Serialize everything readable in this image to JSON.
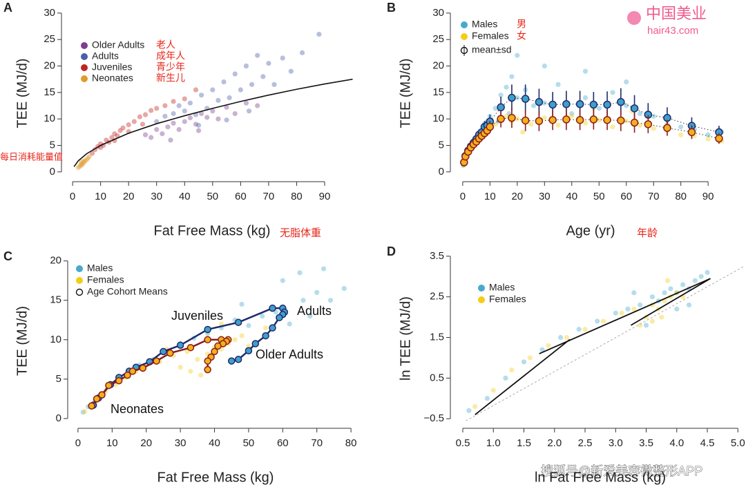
{
  "chart_data": [
    {
      "type": "scatter",
      "panel": "A",
      "xlabel": "Fat Free Mass (kg)",
      "ylabel": "TEE (MJ/d)",
      "xlim": [
        -2,
        101.6
      ],
      "ylim": [
        -1.2,
        30.9
      ],
      "xticks": [
        0,
        10,
        20,
        30,
        40,
        50,
        60,
        70,
        80,
        90
      ],
      "yticks": [
        0,
        5,
        10,
        15,
        20,
        25,
        30
      ],
      "series": [
        {
          "name": "Older Adults",
          "color": "#7b3f8f",
          "x": [
            26,
            28,
            30,
            32,
            34,
            36,
            38,
            40,
            42,
            44,
            46,
            48,
            50,
            52,
            55,
            58,
            62,
            66,
            35,
            45
          ],
          "values": [
            7.0,
            6.5,
            8.0,
            7.2,
            8.5,
            9.2,
            8.0,
            9.5,
            10.2,
            9.0,
            11.0,
            10.3,
            11.5,
            10.0,
            12.2,
            11.0,
            13.0,
            12.5,
            6.0,
            7.8
          ]
        },
        {
          "name": "Adults",
          "color": "#4a5fa8",
          "x": [
            30,
            33,
            36,
            38,
            40,
            42,
            44,
            46,
            48,
            50,
            52,
            54,
            56,
            58,
            60,
            62,
            64,
            66,
            68,
            70,
            72,
            75,
            78,
            82,
            88,
            45,
            55,
            63
          ],
          "values": [
            9.5,
            10.5,
            11.0,
            12.5,
            11.5,
            13.0,
            10.8,
            14.5,
            12.0,
            15.5,
            13.5,
            17.0,
            14.0,
            18.5,
            15.5,
            20.0,
            16.5,
            22.0,
            18.0,
            20.5,
            16.5,
            21.5,
            19.0,
            22.5,
            26.0,
            8.8,
            9.8,
            11.5
          ]
        },
        {
          "name": "Juveniles",
          "color": "#c0241e",
          "x": [
            7,
            8,
            9,
            10,
            11,
            12,
            13,
            14,
            15,
            16,
            17,
            18,
            20,
            22,
            24,
            26,
            28,
            30,
            33,
            36,
            40,
            44,
            10,
            15,
            20,
            25
          ],
          "values": [
            3.5,
            4.2,
            4.8,
            5.3,
            5.0,
            6.0,
            5.6,
            6.5,
            7.2,
            6.8,
            7.8,
            8.3,
            8.9,
            9.5,
            10.4,
            10.8,
            11.6,
            12.0,
            12.5,
            13.3,
            13.8,
            15.5,
            4.6,
            5.9,
            7.6,
            9.0
          ]
        },
        {
          "name": "Neonates",
          "color": "#e09b2d",
          "x": [
            2,
            2.5,
            3,
            3,
            3.5,
            4,
            4,
            4.5,
            5,
            5.5,
            6,
            3.2
          ],
          "values": [
            0.8,
            1.0,
            1.2,
            1.5,
            1.4,
            1.7,
            2.0,
            2.1,
            2.3,
            2.6,
            2.9,
            1.9
          ]
        }
      ],
      "fit": {
        "color": "#111111",
        "x": [
          0.5,
          2,
          5,
          10,
          20,
          30,
          40,
          50,
          60,
          70,
          80,
          90,
          100
        ],
        "values": [
          0.98,
          2.08,
          3.42,
          5.0,
          7.3,
          9.1,
          10.6,
          12.0,
          13.3,
          14.5,
          15.6,
          16.6,
          17.5
        ]
      },
      "legend_annotations": [
        "老人",
        "成年人",
        "青少年",
        "新生儿"
      ],
      "annotations": [
        "每日消耗能量值",
        "无脂体重"
      ],
      "annotation_color": "#e8261a"
    },
    {
      "type": "scatter",
      "panel": "B",
      "xlabel": "Age (yr)",
      "ylabel": "TEE (MJ/d)",
      "xlim": [
        -2.5,
        96.3
      ],
      "ylim": [
        -1.2,
        30.9
      ],
      "xticks": [
        0,
        10,
        20,
        30,
        40,
        50,
        60,
        70,
        80,
        90
      ],
      "yticks": [
        0,
        5,
        10,
        15,
        20,
        25,
        30
      ],
      "series": [
        {
          "name": "Males",
          "color": "#47a9cc",
          "x": [
            0.2,
            0.5,
            1,
            1.5,
            2,
            3,
            4,
            5,
            6,
            7,
            8,
            9,
            10,
            12,
            14,
            16,
            18,
            20,
            23,
            26,
            30,
            35,
            40,
            45,
            50,
            55,
            60,
            65,
            70,
            75,
            80,
            85,
            90,
            95,
            20,
            30,
            45,
            60,
            13,
            17
          ],
          "values": [
            1.2,
            2.0,
            3.0,
            3.5,
            4.2,
            5.0,
            5.8,
            6.2,
            7.5,
            7.8,
            9.0,
            9.5,
            10.5,
            12.0,
            14.5,
            16.0,
            18.0,
            14.0,
            15.5,
            12.5,
            13.0,
            16.5,
            11.0,
            14.0,
            12.0,
            15.0,
            12.5,
            11.0,
            10.5,
            9.0,
            8.5,
            8.0,
            7.0,
            7.5,
            22,
            20,
            19,
            17,
            9.5,
            11
          ],
          "mean_fill": "#3f9fc8",
          "mean_stroke": "#1c2a6e",
          "mean_x": [
            0.5,
            1,
            2,
            3,
            4,
            5,
            6,
            7,
            8,
            9,
            10,
            14,
            18,
            23,
            28,
            33,
            38,
            43,
            48,
            53,
            58,
            63,
            68,
            75,
            84,
            94
          ],
          "mean_values": [
            1.8,
            3.0,
            4.0,
            4.8,
            5.5,
            6.2,
            7.0,
            7.5,
            8.5,
            8.8,
            9.5,
            12.2,
            14.0,
            13.8,
            13.2,
            12.7,
            12.8,
            12.8,
            12.7,
            12.7,
            13.2,
            12.0,
            10.8,
            10.2,
            8.7,
            7.5
          ],
          "mean_sd": [
            0.3,
            0.5,
            0.6,
            0.7,
            0.8,
            0.9,
            1.0,
            1.0,
            1.1,
            1.2,
            1.3,
            2.0,
            2.5,
            2.7,
            2.5,
            2.4,
            2.5,
            2.5,
            2.4,
            2.5,
            2.6,
            2.5,
            2.2,
            2.0,
            1.6,
            1.2
          ]
        },
        {
          "name": "Females",
          "color": "#f5cc16",
          "x": [
            0.3,
            0.6,
            1,
            2,
            3,
            4,
            5,
            6,
            7,
            8,
            9,
            10,
            12,
            14,
            16,
            18,
            20,
            25,
            30,
            35,
            40,
            45,
            50,
            55,
            60,
            65,
            70,
            75,
            80,
            85,
            90,
            95,
            22,
            33,
            48,
            62
          ],
          "values": [
            1.3,
            1.8,
            2.8,
            3.6,
            4.5,
            5.0,
            5.5,
            6.0,
            6.6,
            7.2,
            7.5,
            8.2,
            9.0,
            9.8,
            10.5,
            9.5,
            10.0,
            9.0,
            10.2,
            8.8,
            10.5,
            9.2,
            9.8,
            8.5,
            9.6,
            8.8,
            8.2,
            7.8,
            7.0,
            6.8,
            6.2,
            5.8,
            7.5,
            12.5,
            12.0,
            11.5
          ],
          "mean_fill": "#f2b01a",
          "mean_stroke": "#8b1c1c",
          "mean_x": [
            0.5,
            1,
            2,
            3,
            4,
            5,
            6,
            7,
            8,
            9,
            10,
            14,
            18,
            23,
            28,
            33,
            38,
            43,
            48,
            53,
            58,
            63,
            68,
            75,
            84,
            94
          ],
          "mean_values": [
            1.8,
            2.9,
            3.8,
            4.6,
            5.2,
            5.7,
            6.3,
            6.8,
            7.3,
            7.8,
            8.5,
            10.0,
            10.2,
            9.7,
            9.6,
            9.8,
            9.9,
            9.8,
            9.9,
            9.8,
            9.7,
            9.3,
            9.0,
            8.3,
            7.5,
            6.3
          ],
          "mean_sd": [
            0.3,
            0.4,
            0.5,
            0.6,
            0.7,
            0.7,
            0.8,
            0.9,
            0.9,
            1.0,
            1.1,
            1.6,
            1.9,
            2.0,
            1.9,
            1.9,
            2.0,
            1.9,
            1.9,
            1.9,
            2.0,
            1.9,
            1.7,
            1.5,
            1.3,
            1.0
          ]
        }
      ],
      "extra_legend": "mean±sd",
      "legend_annotations": [
        "男",
        "女"
      ],
      "annotations": [
        "年龄"
      ],
      "annotation_color": "#e8261a"
    },
    {
      "type": "scatter",
      "panel": "C",
      "xlabel": "Fat Free Mass (kg)",
      "ylabel": "TEE (MJ/d)",
      "xlim": [
        -1.4,
        82
      ],
      "ylim": [
        -0.8,
        20.5
      ],
      "xticks": [
        0,
        10,
        20,
        30,
        40,
        50,
        60,
        70,
        80
      ],
      "yticks": [
        0,
        5,
        10,
        15,
        20
      ],
      "series": [
        {
          "name": "Males",
          "color": "#47a9cc",
          "x": [
            1.5,
            3,
            5,
            7,
            9,
            12,
            15,
            18,
            22,
            26,
            30,
            34,
            38,
            42,
            46,
            50,
            54,
            58,
            62,
            66,
            70,
            74,
            78,
            55,
            60,
            65,
            48,
            52,
            68,
            72
          ],
          "values": [
            0.8,
            1.5,
            2.3,
            3.0,
            4.0,
            4.8,
            5.8,
            6.8,
            7.5,
            8.5,
            9.5,
            10.2,
            10.8,
            11.5,
            12.5,
            11.8,
            13.0,
            13.5,
            12.0,
            15.0,
            16.0,
            15.0,
            16.5,
            10.5,
            17.5,
            18.5,
            14.5,
            9.5,
            13.0,
            19.0
          ],
          "cohort_fill": "#3f9fc8",
          "cohort_stroke": "#1c2a6e",
          "cohort_x": [
            4.5,
            6,
            7,
            9.5,
            12,
            15,
            17,
            21,
            25,
            30,
            38,
            47,
            57,
            60,
            60.5,
            60,
            59,
            57,
            55,
            52,
            50,
            47,
            45
          ],
          "cohort_values": [
            1.7,
            2.6,
            3,
            4.3,
            5.2,
            6,
            6.5,
            7.2,
            8.5,
            9.3,
            11.3,
            12.2,
            14,
            14,
            13.5,
            13.2,
            12.8,
            11.5,
            10.5,
            9.5,
            8.6,
            7.5,
            7.3
          ]
        },
        {
          "name": "Females",
          "color": "#f5cc16",
          "x": [
            2,
            4,
            6,
            8,
            11,
            14,
            17,
            20,
            24,
            28,
            32,
            35,
            38,
            40,
            42,
            44,
            46,
            48,
            50,
            33,
            36,
            30,
            26,
            38,
            42,
            55
          ],
          "values": [
            0.9,
            1.7,
            2.6,
            3.4,
            4.3,
            5.2,
            6.0,
            6.8,
            7.2,
            8.0,
            8.5,
            7.5,
            8.2,
            9.0,
            8.8,
            9.5,
            10.0,
            10.5,
            9.2,
            6.0,
            5.5,
            6.5,
            8.8,
            11.0,
            12.0,
            11.5
          ],
          "cohort_fill": "#f2b01a",
          "cohort_stroke": "#8b1c1c",
          "cohort_x": [
            4,
            5.5,
            7,
            9,
            12,
            14.5,
            16,
            19,
            23,
            27,
            33,
            38,
            42,
            44,
            43.5,
            42.5,
            41,
            40,
            39,
            38,
            38
          ],
          "cohort_values": [
            1.6,
            2.5,
            3,
            4.2,
            4.8,
            5.5,
            6,
            6.4,
            7.3,
            8.3,
            9,
            10,
            10,
            10,
            9.8,
            9.5,
            9.2,
            8.5,
            7.8,
            7.3,
            6.2
          ]
        }
      ],
      "extra_legend": "Age Cohort Means",
      "annotations": [
        "Juveniles",
        "Adults",
        "Older Adults",
        "Neonates"
      ],
      "annotation_color": "#111111"
    },
    {
      "type": "scatter",
      "panel": "D",
      "xlabel": "ln Fat Free Mass (kg)",
      "ylabel": "ln TEE (MJ/d)",
      "xlim": [
        0.387,
        5.11
      ],
      "ylim": [
        -0.65,
        3.6
      ],
      "xticks": [
        {
          "value": 0.5,
          "label": "0.5"
        },
        {
          "value": 1,
          "label": "1.0"
        },
        {
          "value": 1.5,
          "label": "1.5"
        },
        {
          "value": 2,
          "label": "2.0"
        },
        {
          "value": 2.5,
          "label": "2.5"
        },
        {
          "value": 3,
          "label": "3.0"
        },
        {
          "value": 3.5,
          "label": "3.5"
        },
        {
          "value": 4,
          "label": "4.0"
        },
        {
          "value": 4.5,
          "label": "4.5"
        },
        {
          "value": 5,
          "label": "5.0"
        }
      ],
      "yticks": [
        {
          "value": -0.5,
          "label": "−0.5"
        },
        0.5,
        1.5,
        2.5,
        3.5
      ],
      "series": [
        {
          "name": "Males",
          "color": "#47a9cc",
          "x": [
            0.6,
            0.9,
            1.2,
            1.5,
            1.8,
            2.1,
            2.4,
            2.7,
            3.0,
            3.2,
            3.4,
            3.6,
            3.7,
            3.8,
            3.9,
            4.0,
            4.1,
            4.2,
            4.3,
            4.4,
            4.5,
            3.5,
            4.0,
            4.2,
            3.3
          ],
          "values": [
            -0.3,
            0.0,
            0.5,
            0.9,
            1.2,
            1.5,
            1.7,
            1.9,
            2.1,
            2.2,
            2.3,
            2.5,
            2.4,
            2.6,
            2.7,
            2.6,
            2.8,
            2.7,
            2.9,
            3.0,
            3.1,
            1.8,
            2.2,
            2.3,
            2.6
          ]
        },
        {
          "name": "Females",
          "color": "#f5cc16",
          "x": [
            0.7,
            1.0,
            1.3,
            1.6,
            1.9,
            2.2,
            2.5,
            2.8,
            3.1,
            3.3,
            3.5,
            3.6,
            3.7,
            3.8,
            3.9,
            4.0,
            4.1,
            3.4,
            3.6,
            3.75,
            3.85
          ],
          "values": [
            -0.2,
            0.2,
            0.7,
            1.0,
            1.3,
            1.5,
            1.7,
            1.9,
            2.1,
            2.2,
            2.0,
            2.3,
            2.2,
            2.4,
            2.5,
            2.6,
            2.5,
            1.8,
            1.9,
            2.0,
            2.9
          ]
        }
      ],
      "fit_lines": [
        {
          "x": [
            0.7,
            2.25
          ],
          "values": [
            -0.4,
            1.45
          ]
        },
        {
          "x": [
            1.75,
            4.55
          ],
          "values": [
            1.1,
            2.95
          ]
        },
        {
          "x": [
            3.25,
            4.55
          ],
          "values": [
            1.8,
            2.95
          ]
        }
      ],
      "reference_line": {
        "x": [
          0.55,
          5.1
        ],
        "values": [
          -0.55,
          3.25
        ]
      }
    }
  ],
  "watermarks": [
    "中国美业",
    "hair43.com",
    "搜狐号@新爱美容微整形APP"
  ]
}
